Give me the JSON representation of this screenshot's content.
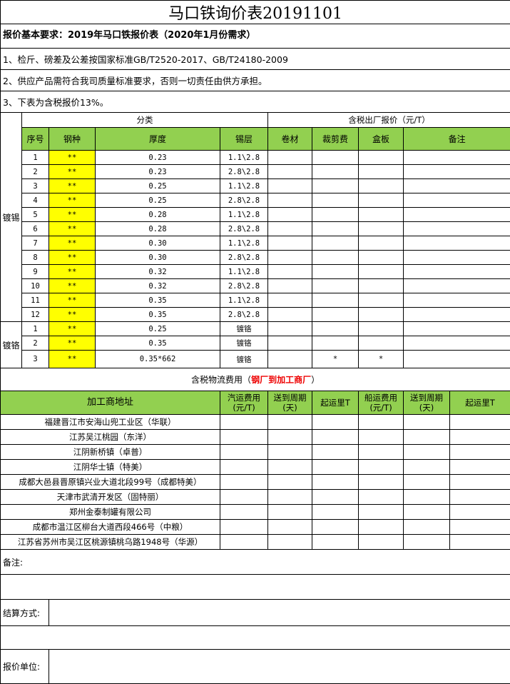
{
  "title": "马口铁询价表20191101",
  "requirements": "报价基本要求：2019年马口铁报价表（2020年1月份需求）",
  "notes": [
    "1、检斤、磅差及公差按国家标准GB/T2520-2017、GB/T24180-2009",
    "2、供应产品需符合我司质量标准要求，否则一切责任由供方承担。",
    "3、下表为含税报价13%。"
  ],
  "price_table": {
    "group_category": "分类",
    "group_price": "含税出厂报价（元/T）",
    "headers": [
      "序号",
      "钢种",
      "厚度",
      "锡层",
      "卷材",
      "裁剪费",
      "盒板",
      "备注"
    ],
    "tin_label": "镀锡",
    "chrome_label": "镀铬",
    "tin_rows": [
      [
        "1",
        "**",
        "0.23",
        "1.1\\2.8"
      ],
      [
        "2",
        "**",
        "0.23",
        "2.8\\2.8"
      ],
      [
        "3",
        "**",
        "0.25",
        "1.1\\2.8"
      ],
      [
        "4",
        "**",
        "0.25",
        "2.8\\2.8"
      ],
      [
        "5",
        "**",
        "0.28",
        "1.1\\2.8"
      ],
      [
        "6",
        "**",
        "0.28",
        "2.8\\2.8"
      ],
      [
        "7",
        "**",
        "0.30",
        "1.1\\2.8"
      ],
      [
        "8",
        "**",
        "0.30",
        "2.8\\2.8"
      ],
      [
        "9",
        "**",
        "0.32",
        "1.1\\2.8"
      ],
      [
        "10",
        "**",
        "0.32",
        "2.8\\2.8"
      ],
      [
        "11",
        "**",
        "0.35",
        "1.1\\2.8"
      ],
      [
        "12",
        "**",
        "0.35",
        "2.8\\2.8"
      ]
    ],
    "chrome_rows": [
      [
        "1",
        "**",
        "0.25",
        "镀铬",
        "",
        "",
        ""
      ],
      [
        "2",
        "**",
        "0.35",
        "镀铬",
        "",
        "",
        ""
      ],
      [
        "3",
        "**",
        "0.35*662",
        "镀铬",
        "",
        "*",
        "*"
      ]
    ]
  },
  "logistics": {
    "title": "含税物流费用（",
    "title_red": "钢厂到加工商厂",
    "title_end": "）",
    "headers": [
      "加工商地址",
      "汽运费用(元/T)",
      "送到周期(天)",
      "起运里T",
      "船运费用(元/T)",
      "送到周期(天)",
      "起运里T"
    ],
    "addresses": [
      "福建晋江市安海山兜工业区（华联）",
      "江苏吴江桃园（东洋）",
      "江阴新桥镇（卓普）",
      "江阴华士镇（特美）",
      "成都大邑县晋原镇兴业大道北段99号（成都特美）",
      "天津市武清开发区（固特丽）",
      "郑州金泰制罐有限公司",
      "成都市温江区柳台大道西段466号（中粮）",
      "江苏省苏州市吴江区桃源镇桃乌路1948号（华源）"
    ]
  },
  "footer": {
    "remarks": "备注:",
    "settlement": "结算方式:",
    "quoting_unit": "报价单位:"
  },
  "colors": {
    "header_green": "#92d050",
    "steel_yellow": "#ffff00",
    "accent_red": "#e00000"
  }
}
